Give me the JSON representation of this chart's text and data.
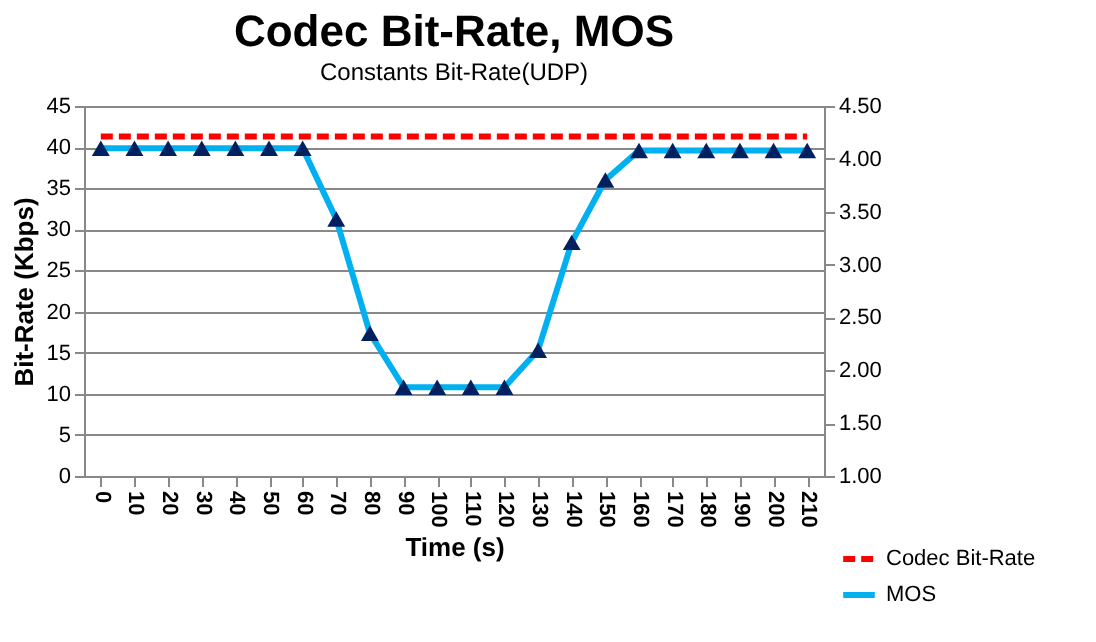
{
  "chart_data": {
    "type": "line",
    "title": "Codec Bit-Rate, MOS",
    "subtitle": "Constants Bit-Rate(UDP)",
    "xlabel": "Time (s)",
    "ylabel": "Bit-Rate (Kbps)",
    "categories": [
      "0",
      "10",
      "20",
      "30",
      "40",
      "50",
      "60",
      "70",
      "80",
      "90",
      "100",
      "110",
      "120",
      "130",
      "140",
      "150",
      "160",
      "170",
      "180",
      "190",
      "200",
      "210"
    ],
    "series": [
      {
        "name": "Codec Bit-Rate",
        "color": "#ff0000",
        "line_style": "dashed",
        "marker": "none",
        "values": [
          41.3,
          41.3,
          41.3,
          41.3,
          41.3,
          41.3,
          41.3,
          41.3,
          41.3,
          41.3,
          41.3,
          41.3,
          41.3,
          41.3,
          41.3,
          41.3,
          41.3,
          41.3,
          41.3,
          41.3,
          41.3,
          41.3
        ]
      },
      {
        "name": "MOS",
        "color": "#00b0f0",
        "line_style": "solid",
        "marker": "triangle",
        "axis": "y2",
        "values": [
          4.1,
          4.1,
          4.1,
          4.1,
          4.1,
          4.1,
          4.1,
          3.43,
          2.35,
          1.84,
          1.84,
          1.84,
          1.84,
          2.19,
          3.21,
          3.8,
          4.08,
          4.08,
          4.08,
          4.08,
          4.08,
          4.08
        ]
      }
    ],
    "ylim": [
      0,
      45
    ],
    "yticks": [
      0,
      5,
      10,
      15,
      20,
      25,
      30,
      35,
      40,
      45
    ],
    "y2lim": [
      1,
      4.5
    ],
    "y2ticks": [
      {
        "value": 1,
        "label": "1.00"
      },
      {
        "value": 1.5,
        "label": "1.50"
      },
      {
        "value": 2,
        "label": "2.00"
      },
      {
        "value": 2.5,
        "label": "2.50"
      },
      {
        "value": 3,
        "label": "3.00"
      },
      {
        "value": 3.5,
        "label": "3.50"
      },
      {
        "value": 4,
        "label": "4.00"
      },
      {
        "value": 4.5,
        "label": "4.50"
      }
    ],
    "grid": "y",
    "legend": "bottom right"
  }
}
